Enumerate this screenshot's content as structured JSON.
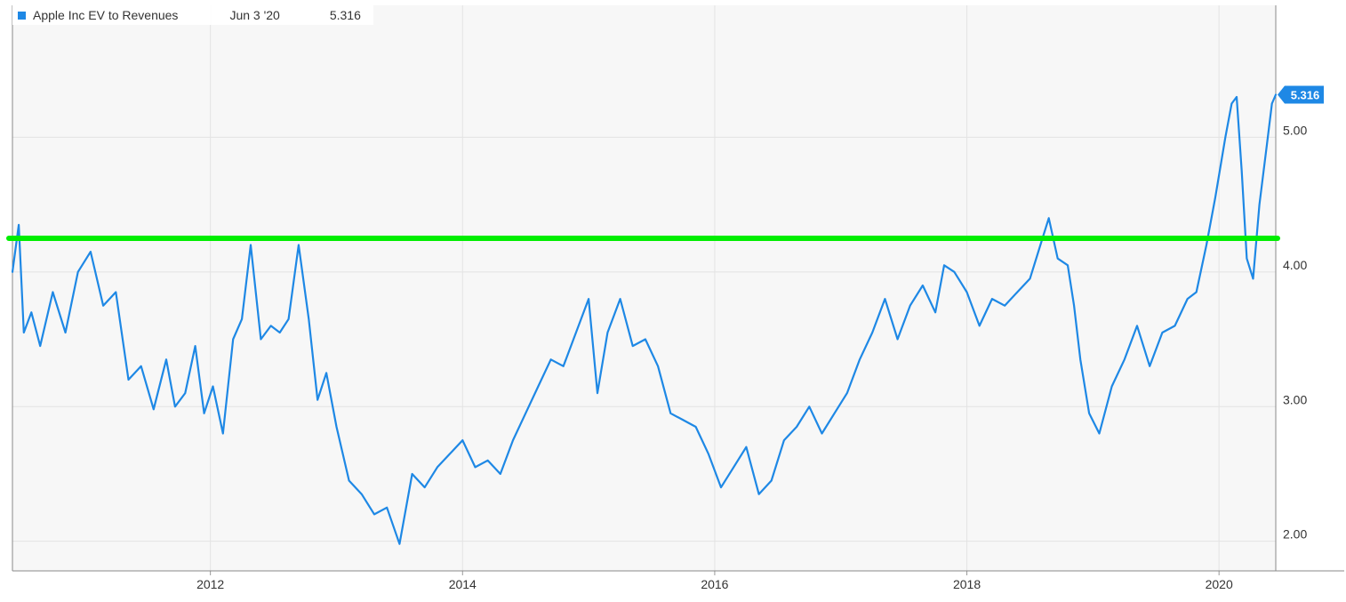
{
  "legend": {
    "series_name": "Apple Inc EV to Revenues",
    "date": "Jun 3 '20",
    "value": "5.316"
  },
  "colors": {
    "series": "#1e88e5",
    "reference_line": "#00ee00",
    "plot_background": "#f7f7f7",
    "grid": "#e3e3e3"
  },
  "chart_data": {
    "type": "line",
    "title": "",
    "xlabel": "",
    "ylabel": "",
    "x_ticks": [
      "2012",
      "2014",
      "2016",
      "2018",
      "2020"
    ],
    "y_ticks": [
      "2.00",
      "3.00",
      "4.00",
      "5.00"
    ],
    "xlim": [
      2010.43,
      2020.45
    ],
    "ylim": [
      1.78,
      5.98
    ],
    "grid": true,
    "legend_position": "top-left",
    "last_value_label": "5.316",
    "reference_line": {
      "y": 4.25
    },
    "series": [
      {
        "name": "Apple Inc EV to Revenues",
        "x": [
          2010.43,
          2010.48,
          2010.52,
          2010.58,
          2010.65,
          2010.75,
          2010.85,
          2010.95,
          2011.05,
          2011.15,
          2011.25,
          2011.35,
          2011.45,
          2011.55,
          2011.65,
          2011.72,
          2011.8,
          2011.88,
          2011.95,
          2012.02,
          2012.1,
          2012.18,
          2012.25,
          2012.32,
          2012.4,
          2012.48,
          2012.55,
          2012.62,
          2012.7,
          2012.78,
          2012.85,
          2012.92,
          2013.0,
          2013.1,
          2013.2,
          2013.3,
          2013.4,
          2013.5,
          2013.6,
          2013.7,
          2013.8,
          2013.9,
          2014.0,
          2014.1,
          2014.2,
          2014.3,
          2014.4,
          2014.5,
          2014.6,
          2014.7,
          2014.8,
          2014.9,
          2015.0,
          2015.07,
          2015.15,
          2015.25,
          2015.35,
          2015.45,
          2015.55,
          2015.65,
          2015.75,
          2015.85,
          2015.95,
          2016.05,
          2016.15,
          2016.25,
          2016.35,
          2016.45,
          2016.55,
          2016.65,
          2016.75,
          2016.85,
          2016.95,
          2017.05,
          2017.15,
          2017.25,
          2017.35,
          2017.45,
          2017.55,
          2017.65,
          2017.75,
          2017.82,
          2017.9,
          2018.0,
          2018.1,
          2018.2,
          2018.3,
          2018.4,
          2018.5,
          2018.6,
          2018.65,
          2018.72,
          2018.8,
          2018.85,
          2018.9,
          2018.97,
          2019.05,
          2019.15,
          2019.25,
          2019.35,
          2019.45,
          2019.55,
          2019.65,
          2019.75,
          2019.82,
          2019.9,
          2019.97,
          2020.05,
          2020.1,
          2020.14,
          2020.18,
          2020.22,
          2020.27,
          2020.32,
          2020.38,
          2020.42,
          2020.45
        ],
        "values": [
          4.0,
          4.35,
          3.55,
          3.7,
          3.45,
          3.85,
          3.55,
          4.0,
          4.15,
          3.75,
          3.85,
          3.2,
          3.3,
          2.98,
          3.35,
          3.0,
          3.1,
          3.45,
          2.95,
          3.15,
          2.8,
          3.5,
          3.65,
          4.2,
          3.5,
          3.6,
          3.55,
          3.65,
          4.2,
          3.65,
          3.05,
          3.25,
          2.85,
          2.45,
          2.35,
          2.2,
          2.25,
          1.98,
          2.5,
          2.4,
          2.55,
          2.65,
          2.75,
          2.55,
          2.6,
          2.5,
          2.75,
          2.95,
          3.15,
          3.35,
          3.3,
          3.55,
          3.8,
          3.1,
          3.55,
          3.8,
          3.45,
          3.5,
          3.3,
          2.95,
          2.9,
          2.85,
          2.65,
          2.4,
          2.55,
          2.7,
          2.35,
          2.45,
          2.75,
          2.85,
          3.0,
          2.8,
          2.95,
          3.1,
          3.35,
          3.55,
          3.8,
          3.5,
          3.75,
          3.9,
          3.7,
          4.05,
          4.0,
          3.85,
          3.6,
          3.8,
          3.75,
          3.85,
          3.95,
          4.25,
          4.4,
          4.1,
          4.05,
          3.75,
          3.35,
          2.95,
          2.8,
          3.15,
          3.35,
          3.6,
          3.3,
          3.55,
          3.6,
          3.8,
          3.85,
          4.2,
          4.55,
          5.0,
          5.25,
          5.3,
          4.75,
          4.1,
          3.95,
          4.5,
          4.95,
          5.25,
          5.316
        ]
      }
    ]
  }
}
